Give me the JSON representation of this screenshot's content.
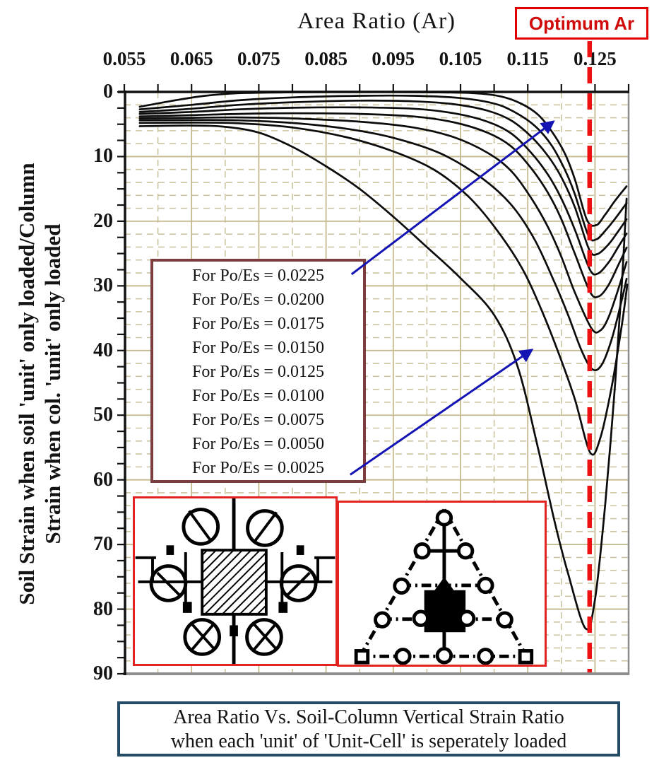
{
  "title": "Area Ratio (Ar)",
  "optimum_label": "Optimum Ar",
  "y_axis_title": {
    "line1": "Soil Strain when soil 'unit' only loaded/Column",
    "line2": "Strain when col. 'unit' only loaded"
  },
  "legend": {
    "items": [
      "For Po/Es = 0.0225",
      "For Po/Es = 0.0200",
      "For Po/Es = 0.0175",
      "For Po/Es = 0.0150",
      "For Po/Es = 0.0125",
      "For Po/Es = 0.0100",
      "For Po/Es = 0.0075",
      "For Po/Es = 0.0050",
      "For Po/Es = 0.0025"
    ]
  },
  "caption": {
    "line1": "Area Ratio Vs. Soil-Column Vertical Strain Ratio",
    "line2": "when each 'unit' of 'Unit-Cell' is seperately loaded"
  },
  "insets": {
    "left_name": "square-unit-cell-diagram",
    "right_name": "triangular-unit-cell-diagram"
  },
  "colors": {
    "grid_solid": "#c3b98c",
    "grid_dashed": "#ccc4a0",
    "curve": "#0c0c0c",
    "optimum_line": "#ee1111",
    "arrow": "#1414b4",
    "frame_gray": "#8e8e8e",
    "axis_black": "#111111",
    "legend_border": "#7b3d3d",
    "caption_border": "#254b66",
    "optimum_red": "#cf0b0b",
    "inset_border": "#e32222"
  },
  "chart_data": {
    "type": "line",
    "title": "Area Ratio (Ar)",
    "xlabel": "Area Ratio (Ar)",
    "ylabel": "Soil Strain when soil 'unit' only loaded/Column Strain when col. 'unit' only loaded",
    "xlim": [
      0.055,
      0.13
    ],
    "ylim": [
      0,
      90
    ],
    "y_inverted": true,
    "grid": {
      "x_major_step": 0.01,
      "x_minor_step": 0.005,
      "y_major_step": 10,
      "y_minor_step": 2
    },
    "x_ticks": [
      {
        "v": 0.055,
        "label": "0.055"
      },
      {
        "v": 0.065,
        "label": "0.065"
      },
      {
        "v": 0.075,
        "label": "0.075"
      },
      {
        "v": 0.085,
        "label": "0.085"
      },
      {
        "v": 0.095,
        "label": "0.095"
      },
      {
        "v": 0.105,
        "label": "0.105"
      },
      {
        "v": 0.115,
        "label": "0.115"
      },
      {
        "v": 0.125,
        "label": "0.125"
      }
    ],
    "y_ticks": [
      {
        "v": 0,
        "label": "0"
      },
      {
        "v": 10,
        "label": "10"
      },
      {
        "v": 20,
        "label": "20"
      },
      {
        "v": 30,
        "label": "30"
      },
      {
        "v": 40,
        "label": "40"
      },
      {
        "v": 50,
        "label": "50"
      },
      {
        "v": 60,
        "label": "60"
      },
      {
        "v": 70,
        "label": "70"
      },
      {
        "v": 80,
        "label": "80"
      },
      {
        "v": 90,
        "label": "90"
      }
    ],
    "optimum_ar": 0.1242,
    "series": [
      {
        "name": "Po/Es = 0.0225",
        "points": [
          [
            0.0573,
            2.3
          ],
          [
            0.062,
            1.4
          ],
          [
            0.067,
            0.6
          ],
          [
            0.072,
            0.2
          ],
          [
            0.08,
            0.05
          ],
          [
            0.09,
            0
          ],
          [
            0.1,
            0.05
          ],
          [
            0.107,
            0.2
          ],
          [
            0.111,
            0.7
          ],
          [
            0.114,
            1.8
          ],
          [
            0.1165,
            3.5
          ],
          [
            0.1185,
            6
          ],
          [
            0.1205,
            9.5
          ],
          [
            0.122,
            13.5
          ],
          [
            0.1238,
            19.8
          ],
          [
            0.1252,
            20.6
          ],
          [
            0.1265,
            19
          ],
          [
            0.128,
            16.8
          ],
          [
            0.1297,
            14.6
          ]
        ]
      },
      {
        "name": "Po/Es = 0.0200",
        "points": [
          [
            0.0573,
            2.7
          ],
          [
            0.065,
            2.0
          ],
          [
            0.072,
            1.3
          ],
          [
            0.08,
            0.85
          ],
          [
            0.09,
            0.6
          ],
          [
            0.098,
            0.6
          ],
          [
            0.105,
            0.95
          ],
          [
            0.11,
            1.8
          ],
          [
            0.113,
            3.1
          ],
          [
            0.116,
            5.2
          ],
          [
            0.1185,
            8.2
          ],
          [
            0.1205,
            12
          ],
          [
            0.122,
            15.8
          ],
          [
            0.124,
            22.2
          ],
          [
            0.1252,
            22.8
          ],
          [
            0.1265,
            21.5
          ],
          [
            0.128,
            19.6
          ],
          [
            0.1297,
            17.2
          ]
        ]
      },
      {
        "name": "Po/Es = 0.0175",
        "points": [
          [
            0.0573,
            3.1
          ],
          [
            0.065,
            2.6
          ],
          [
            0.072,
            2.0
          ],
          [
            0.08,
            1.6
          ],
          [
            0.09,
            1.35
          ],
          [
            0.098,
            1.45
          ],
          [
            0.104,
            1.9
          ],
          [
            0.109,
            2.9
          ],
          [
            0.1125,
            4.4
          ],
          [
            0.1155,
            6.9
          ],
          [
            0.118,
            9.9
          ],
          [
            0.12,
            13.2
          ],
          [
            0.122,
            17.8
          ],
          [
            0.1241,
            24.3
          ],
          [
            0.1253,
            25.1
          ],
          [
            0.127,
            23.6
          ],
          [
            0.1285,
            21.5
          ],
          [
            0.1297,
            19.7
          ]
        ]
      },
      {
        "name": "Po/Es = 0.0150",
        "points": [
          [
            0.0573,
            3.4
          ],
          [
            0.065,
            3.1
          ],
          [
            0.072,
            2.7
          ],
          [
            0.08,
            2.45
          ],
          [
            0.09,
            2.4
          ],
          [
            0.098,
            2.6
          ],
          [
            0.104,
            3.3
          ],
          [
            0.109,
            4.6
          ],
          [
            0.1125,
            6.4
          ],
          [
            0.1155,
            9.4
          ],
          [
            0.118,
            12.8
          ],
          [
            0.12,
            16.5
          ],
          [
            0.122,
            21.3
          ],
          [
            0.1242,
            27.4
          ],
          [
            0.1254,
            28.1
          ],
          [
            0.127,
            26.4
          ],
          [
            0.1285,
            23.9
          ],
          [
            0.1297,
            21.9
          ]
        ]
      },
      {
        "name": "Po/Es = 0.0125",
        "points": [
          [
            0.0573,
            3.8
          ],
          [
            0.065,
            3.6
          ],
          [
            0.072,
            3.4
          ],
          [
            0.08,
            3.3
          ],
          [
            0.09,
            3.4
          ],
          [
            0.098,
            3.8
          ],
          [
            0.104,
            4.7
          ],
          [
            0.109,
            6.3
          ],
          [
            0.1125,
            8.4
          ],
          [
            0.1155,
            11.8
          ],
          [
            0.118,
            15.6
          ],
          [
            0.12,
            19.7
          ],
          [
            0.122,
            25
          ],
          [
            0.1243,
            31
          ],
          [
            0.1256,
            31.6
          ],
          [
            0.127,
            29.9
          ],
          [
            0.1285,
            26.7
          ],
          [
            0.1297,
            24.1
          ]
        ]
      },
      {
        "name": "Po/Es = 0.0100",
        "points": [
          [
            0.0573,
            4.1
          ],
          [
            0.065,
            4.0
          ],
          [
            0.072,
            3.95
          ],
          [
            0.08,
            4.1
          ],
          [
            0.09,
            4.6
          ],
          [
            0.098,
            5.5
          ],
          [
            0.104,
            7
          ],
          [
            0.109,
            9.4
          ],
          [
            0.1125,
            12.2
          ],
          [
            0.1155,
            16.4
          ],
          [
            0.118,
            20.9
          ],
          [
            0.12,
            25.5
          ],
          [
            0.122,
            31
          ],
          [
            0.1245,
            36.6
          ],
          [
            0.1258,
            36.9
          ],
          [
            0.127,
            34.9
          ],
          [
            0.1285,
            30.4
          ],
          [
            0.1297,
            26.3
          ]
        ]
      },
      {
        "name": "Po/Es = 0.0075",
        "points": [
          [
            0.0573,
            4.4
          ],
          [
            0.065,
            4.35
          ],
          [
            0.072,
            4.4
          ],
          [
            0.08,
            4.8
          ],
          [
            0.088,
            5.7
          ],
          [
            0.095,
            7.1
          ],
          [
            0.102,
            9.5
          ],
          [
            0.108,
            13.2
          ],
          [
            0.1125,
            17.4
          ],
          [
            0.116,
            22.8
          ],
          [
            0.119,
            29.5
          ],
          [
            0.121,
            34.5
          ],
          [
            0.123,
            40
          ],
          [
            0.1246,
            42.9
          ],
          [
            0.126,
            42.2
          ],
          [
            0.1275,
            38.2
          ],
          [
            0.129,
            32.1
          ],
          [
            0.1297,
            28.9
          ]
        ]
      },
      {
        "name": "Po/Es = 0.0050",
        "points": [
          [
            0.0573,
            4.8
          ],
          [
            0.065,
            4.75
          ],
          [
            0.072,
            4.85
          ],
          [
            0.08,
            5.5
          ],
          [
            0.088,
            7.0
          ],
          [
            0.095,
            9.2
          ],
          [
            0.101,
            12
          ],
          [
            0.106,
            16
          ],
          [
            0.11,
            20.8
          ],
          [
            0.114,
            27
          ],
          [
            0.117,
            33.6
          ],
          [
            0.1198,
            41
          ],
          [
            0.122,
            47.5
          ],
          [
            0.1243,
            55.8
          ],
          [
            0.1258,
            53.5
          ],
          [
            0.1275,
            45.5
          ],
          [
            0.129,
            36
          ],
          [
            0.1298,
            29.8
          ]
        ]
      },
      {
        "name": "Po/Es = 0.0025",
        "points": [
          [
            0.0573,
            5.3
          ],
          [
            0.065,
            5.2
          ],
          [
            0.07,
            5.4
          ],
          [
            0.075,
            6.3
          ],
          [
            0.08,
            8.5
          ],
          [
            0.085,
            11.5
          ],
          [
            0.09,
            15
          ],
          [
            0.095,
            19.3
          ],
          [
            0.1,
            24
          ],
          [
            0.105,
            28.8
          ],
          [
            0.11,
            34.5
          ],
          [
            0.1135,
            42.5
          ],
          [
            0.1165,
            55
          ],
          [
            0.119,
            66.5
          ],
          [
            0.121,
            74.5
          ],
          [
            0.1236,
            83
          ],
          [
            0.125,
            78.5
          ],
          [
            0.1265,
            64
          ],
          [
            0.128,
            45
          ],
          [
            0.129,
            29.5
          ],
          [
            0.1297,
            16.5
          ]
        ]
      }
    ],
    "arrows": [
      {
        "from": [
          0.0888,
          28.2
        ],
        "to": [
          0.1188,
          4.6
        ]
      },
      {
        "from": [
          0.0886,
          59.2
        ],
        "to": [
          0.1156,
          39.9
        ]
      }
    ],
    "legend_position": "center-left",
    "annotations": [
      "Optimum Ar"
    ]
  }
}
